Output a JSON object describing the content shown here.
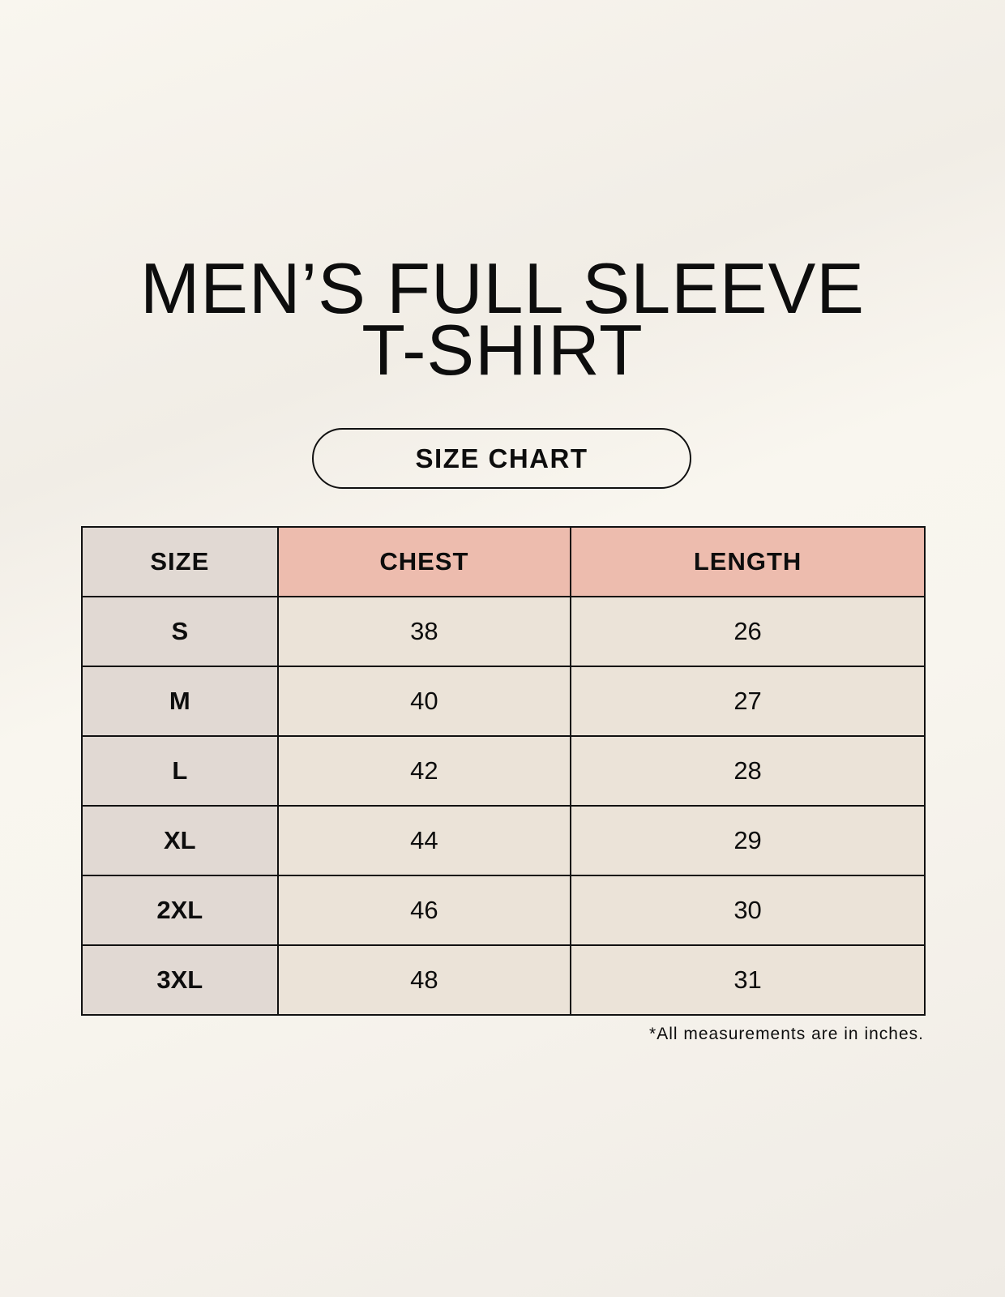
{
  "title_line1": "MEN’S FULL SLEEVE",
  "title_line2": "T-SHIRT",
  "badge": "SIZE CHART",
  "colors": {
    "header_measure": "#edbcae",
    "size_column": "#e1d9d3",
    "cells": "#ebe3d8"
  },
  "table": {
    "headers": [
      "SIZE",
      "CHEST",
      "LENGTH"
    ],
    "rows": [
      [
        "S",
        "38",
        "26"
      ],
      [
        "M",
        "40",
        "27"
      ],
      [
        "L",
        "42",
        "28"
      ],
      [
        "XL",
        "44",
        "29"
      ],
      [
        "2XL",
        "46",
        "30"
      ],
      [
        "3XL",
        "48",
        "31"
      ]
    ]
  },
  "footnote": "*All measurements are in inches."
}
